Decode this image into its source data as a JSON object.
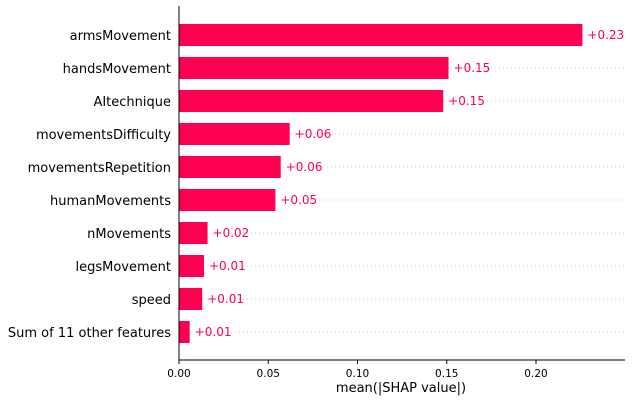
{
  "chart_data": {
    "type": "bar",
    "orientation": "horizontal",
    "categories": [
      "armsMovement",
      "handsMovement",
      "AItechnique",
      "movementsDifficulty",
      "movementsRepetition",
      "humanMovements",
      "nMovements",
      "legsMovement",
      "speed",
      "Sum of 11 other features"
    ],
    "values": [
      0.226,
      0.151,
      0.148,
      0.062,
      0.057,
      0.054,
      0.016,
      0.014,
      0.013,
      0.006
    ],
    "value_labels": [
      "+0.23",
      "+0.15",
      "+0.15",
      "+0.06",
      "+0.06",
      "+0.05",
      "+0.02",
      "+0.01",
      "+0.01",
      "+0.01"
    ],
    "xlabel": "mean(|SHAP value|)",
    "xlim": [
      0,
      0.25
    ],
    "xticks": [
      0.0,
      0.05,
      0.1,
      0.15,
      0.2
    ],
    "xtick_labels": [
      "0.00",
      "0.05",
      "0.10",
      "0.15",
      "0.20"
    ],
    "grid": "horizontal-dotted",
    "bar_color": "#ff0051",
    "label_color": "#ff0051"
  }
}
